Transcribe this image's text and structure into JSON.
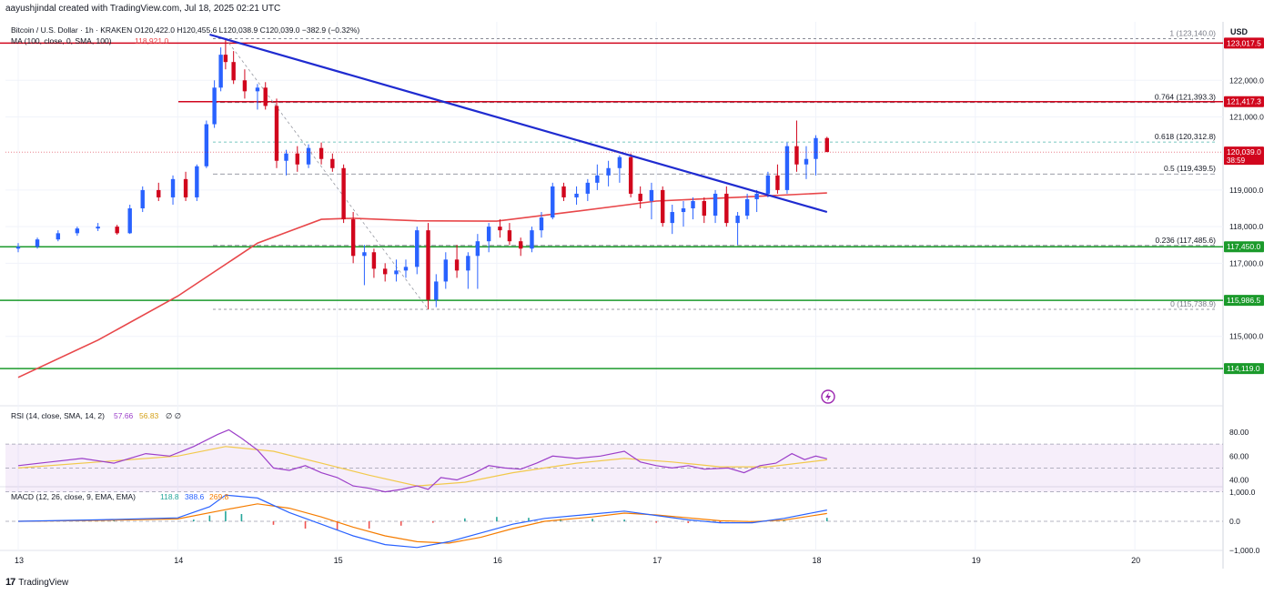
{
  "header": {
    "credit": "aayushjindal created with TradingView.com, Jul 18, 2025 02:21 UTC"
  },
  "legend": {
    "symbol": "Bitcoin / U.S. Dollar · 1h · KRAKEN",
    "ohlc": "O120,422.0  H120,455.6  L120,038.9  C120,039.0  −382.9 (−0.32%)",
    "ma_label": "MA (100, close, 0, SMA, 100)",
    "ma_value": "118,921.0",
    "rsi_label": "RSI (14, close, SMA, 14, 2)",
    "rsi_value": "57.66",
    "rsi_ma_value": "56.83",
    "rsi_extra": "∅  ∅",
    "macd_label": "MACD (12, 26, close, 9, EMA, EMA)",
    "macd_hist": "118.8",
    "macd_line": "388.6",
    "macd_signal": "269.8"
  },
  "currency": "USD",
  "footer": {
    "brand": "TradingView",
    "logo": "17"
  },
  "colors": {
    "up": "#2962ff",
    "down": "#d1061d",
    "ma": "#e8474a",
    "trend": "#1f2bd0",
    "resistance": "#d1061d",
    "support": "#1b9a2b",
    "rsi": "#9c3fc9",
    "rsi_ma": "#f2c94c",
    "macd": "#2962ff",
    "signal": "#f57c00",
    "fib": "#4db6ac"
  },
  "chart_data": {
    "type": "candlestick",
    "title": "Bitcoin / U.S. Dollar · 1h · KRAKEN",
    "x_ticks": [
      "13",
      "14",
      "15",
      "16",
      "17",
      "18",
      "19",
      "20"
    ],
    "y_ticks": [
      "122,000.0",
      "121,000.0",
      "119,000.0",
      "118,000.0",
      "117,000.0",
      "115,000.0"
    ],
    "price_badges": [
      {
        "label": "123,017.5",
        "value": 123017.5,
        "kind": "resistance"
      },
      {
        "label": "121,417.3",
        "value": 121417.3,
        "kind": "resistance"
      },
      {
        "label": "120,039.0",
        "value": 120039.0,
        "kind": "last",
        "countdown": "38:59"
      },
      {
        "label": "117,450.0",
        "value": 117450.0,
        "kind": "support"
      },
      {
        "label": "115,986.5",
        "value": 115986.5,
        "kind": "support"
      },
      {
        "label": "114,119.0",
        "value": 114119.0,
        "kind": "support"
      }
    ],
    "fibonacci": [
      {
        "label": "1 (123,140.0)",
        "level": 1,
        "value": 123140.0
      },
      {
        "label": "0.764 (121,393.3)",
        "level": 0.764,
        "value": 121393.3
      },
      {
        "label": "0.618 (120,312.8)",
        "level": 0.618,
        "value": 120312.8
      },
      {
        "label": "0.5 (119,439.5)",
        "level": 0.5,
        "value": 119439.5
      },
      {
        "label": "0.236 (117,485.6)",
        "level": 0.236,
        "value": 117485.6
      },
      {
        "label": "0 (115,738.9)",
        "level": 0,
        "value": 115738.9
      }
    ],
    "trendline": {
      "start": {
        "day": 14.2,
        "price": 123250
      },
      "end": {
        "day": 18.07,
        "price": 118400
      }
    },
    "ma_100": [
      {
        "day": 13.0,
        "price": 113880
      },
      {
        "day": 13.5,
        "price": 114900
      },
      {
        "day": 14.0,
        "price": 116100
      },
      {
        "day": 14.5,
        "price": 117550
      },
      {
        "day": 14.9,
        "price": 118200
      },
      {
        "day": 15.1,
        "price": 118230
      },
      {
        "day": 15.5,
        "price": 118160
      },
      {
        "day": 16.0,
        "price": 118150
      },
      {
        "day": 16.5,
        "price": 118420
      },
      {
        "day": 17.0,
        "price": 118700
      },
      {
        "day": 17.5,
        "price": 118800
      },
      {
        "day": 18.07,
        "price": 118921
      }
    ],
    "candles": [
      {
        "day": 13.0,
        "o": 117400,
        "h": 117550,
        "l": 117300,
        "c": 117450
      },
      {
        "day": 13.12,
        "o": 117450,
        "h": 117700,
        "l": 117400,
        "c": 117650
      },
      {
        "day": 13.25,
        "o": 117650,
        "h": 117900,
        "l": 117600,
        "c": 117820
      },
      {
        "day": 13.37,
        "o": 117820,
        "h": 118000,
        "l": 117750,
        "c": 117950
      },
      {
        "day": 13.5,
        "o": 117950,
        "h": 118100,
        "l": 117880,
        "c": 118000
      },
      {
        "day": 13.62,
        "o": 118000,
        "h": 118050,
        "l": 117780,
        "c": 117820
      },
      {
        "day": 13.7,
        "o": 117820,
        "h": 118600,
        "l": 117800,
        "c": 118500
      },
      {
        "day": 13.78,
        "o": 118500,
        "h": 119100,
        "l": 118400,
        "c": 119000
      },
      {
        "day": 13.88,
        "o": 119000,
        "h": 119200,
        "l": 118700,
        "c": 118800
      },
      {
        "day": 13.97,
        "o": 118800,
        "h": 119400,
        "l": 118600,
        "c": 119300
      },
      {
        "day": 14.05,
        "o": 119300,
        "h": 119500,
        "l": 118700,
        "c": 118800
      },
      {
        "day": 14.12,
        "o": 118800,
        "h": 119700,
        "l": 118700,
        "c": 119650
      },
      {
        "day": 14.18,
        "o": 119650,
        "h": 120900,
        "l": 119600,
        "c": 120800
      },
      {
        "day": 14.23,
        "o": 120800,
        "h": 122000,
        "l": 120700,
        "c": 121800
      },
      {
        "day": 14.27,
        "o": 121800,
        "h": 122900,
        "l": 121700,
        "c": 122700
      },
      {
        "day": 14.3,
        "o": 122700,
        "h": 123140,
        "l": 122300,
        "c": 122500
      },
      {
        "day": 14.35,
        "o": 122500,
        "h": 122800,
        "l": 121900,
        "c": 122000
      },
      {
        "day": 14.42,
        "o": 122000,
        "h": 122300,
        "l": 121500,
        "c": 121700
      },
      {
        "day": 14.5,
        "o": 121700,
        "h": 121900,
        "l": 121200,
        "c": 121800
      },
      {
        "day": 14.55,
        "o": 121800,
        "h": 121950,
        "l": 121200,
        "c": 121300
      },
      {
        "day": 14.62,
        "o": 121300,
        "h": 121500,
        "l": 119600,
        "c": 119800
      },
      {
        "day": 14.68,
        "o": 119800,
        "h": 120100,
        "l": 119400,
        "c": 120000
      },
      {
        "day": 14.75,
        "o": 120000,
        "h": 120200,
        "l": 119500,
        "c": 119700
      },
      {
        "day": 14.82,
        "o": 119700,
        "h": 120250,
        "l": 119600,
        "c": 120150
      },
      {
        "day": 14.9,
        "o": 120150,
        "h": 120300,
        "l": 119700,
        "c": 119850
      },
      {
        "day": 14.97,
        "o": 119850,
        "h": 120000,
        "l": 119500,
        "c": 119600
      },
      {
        "day": 15.04,
        "o": 119600,
        "h": 119700,
        "l": 118100,
        "c": 118200
      },
      {
        "day": 15.1,
        "o": 118200,
        "h": 118400,
        "l": 117000,
        "c": 117200
      },
      {
        "day": 15.17,
        "o": 117200,
        "h": 117500,
        "l": 116400,
        "c": 117300
      },
      {
        "day": 15.23,
        "o": 117300,
        "h": 117400,
        "l": 116600,
        "c": 116850
      },
      {
        "day": 15.3,
        "o": 116850,
        "h": 117000,
        "l": 116500,
        "c": 116700
      },
      {
        "day": 15.37,
        "o": 116700,
        "h": 117100,
        "l": 116500,
        "c": 116800
      },
      {
        "day": 15.43,
        "o": 116800,
        "h": 117100,
        "l": 116600,
        "c": 116900
      },
      {
        "day": 15.5,
        "o": 116900,
        "h": 118000,
        "l": 116700,
        "c": 117900
      },
      {
        "day": 15.57,
        "o": 117900,
        "h": 118100,
        "l": 115740,
        "c": 116000
      },
      {
        "day": 15.62,
        "o": 116000,
        "h": 116700,
        "l": 115800,
        "c": 116500
      },
      {
        "day": 15.68,
        "o": 116500,
        "h": 117300,
        "l": 116300,
        "c": 117100
      },
      {
        "day": 15.75,
        "o": 117100,
        "h": 117500,
        "l": 116600,
        "c": 116800
      },
      {
        "day": 15.82,
        "o": 116800,
        "h": 117300,
        "l": 116300,
        "c": 117200
      },
      {
        "day": 15.88,
        "o": 117200,
        "h": 117800,
        "l": 116300,
        "c": 117600
      },
      {
        "day": 15.95,
        "o": 117600,
        "h": 118100,
        "l": 117300,
        "c": 118000
      },
      {
        "day": 16.02,
        "o": 118000,
        "h": 118200,
        "l": 117700,
        "c": 117900
      },
      {
        "day": 16.08,
        "o": 117900,
        "h": 118100,
        "l": 117500,
        "c": 117600
      },
      {
        "day": 16.15,
        "o": 117600,
        "h": 117700,
        "l": 117200,
        "c": 117400
      },
      {
        "day": 16.22,
        "o": 117400,
        "h": 118000,
        "l": 117300,
        "c": 117900
      },
      {
        "day": 16.28,
        "o": 117900,
        "h": 118400,
        "l": 117700,
        "c": 118250
      },
      {
        "day": 16.35,
        "o": 118250,
        "h": 119200,
        "l": 118200,
        "c": 119100
      },
      {
        "day": 16.42,
        "o": 119100,
        "h": 119200,
        "l": 118700,
        "c": 118800
      },
      {
        "day": 16.5,
        "o": 118800,
        "h": 119100,
        "l": 118600,
        "c": 118900
      },
      {
        "day": 16.57,
        "o": 118900,
        "h": 119300,
        "l": 118700,
        "c": 119200
      },
      {
        "day": 16.63,
        "o": 119200,
        "h": 119700,
        "l": 119000,
        "c": 119400
      },
      {
        "day": 16.7,
        "o": 119400,
        "h": 119800,
        "l": 119100,
        "c": 119600
      },
      {
        "day": 16.77,
        "o": 119600,
        "h": 119950,
        "l": 119200,
        "c": 119900
      },
      {
        "day": 16.84,
        "o": 119900,
        "h": 120000,
        "l": 118800,
        "c": 118900
      },
      {
        "day": 16.9,
        "o": 118900,
        "h": 119100,
        "l": 118500,
        "c": 118700
      },
      {
        "day": 16.97,
        "o": 118700,
        "h": 119200,
        "l": 118200,
        "c": 119000
      },
      {
        "day": 17.04,
        "o": 119000,
        "h": 119100,
        "l": 118000,
        "c": 118100
      },
      {
        "day": 17.1,
        "o": 118100,
        "h": 118600,
        "l": 117800,
        "c": 118400
      },
      {
        "day": 17.17,
        "o": 118400,
        "h": 118700,
        "l": 118000,
        "c": 118500
      },
      {
        "day": 17.23,
        "o": 118500,
        "h": 118800,
        "l": 118200,
        "c": 118700
      },
      {
        "day": 17.3,
        "o": 118700,
        "h": 118800,
        "l": 118100,
        "c": 118300
      },
      {
        "day": 17.37,
        "o": 118300,
        "h": 119000,
        "l": 118100,
        "c": 118900
      },
      {
        "day": 17.44,
        "o": 118900,
        "h": 119100,
        "l": 118000,
        "c": 118100
      },
      {
        "day": 17.51,
        "o": 118100,
        "h": 118400,
        "l": 117500,
        "c": 118300
      },
      {
        "day": 17.57,
        "o": 118300,
        "h": 118900,
        "l": 118200,
        "c": 118750
      },
      {
        "day": 17.63,
        "o": 118750,
        "h": 119000,
        "l": 118400,
        "c": 118900
      },
      {
        "day": 17.7,
        "o": 118900,
        "h": 119500,
        "l": 118800,
        "c": 119400
      },
      {
        "day": 17.76,
        "o": 119400,
        "h": 119700,
        "l": 118900,
        "c": 119000
      },
      {
        "day": 17.82,
        "o": 119000,
        "h": 120300,
        "l": 118900,
        "c": 120200
      },
      {
        "day": 17.88,
        "o": 120200,
        "h": 120900,
        "l": 119500,
        "c": 119700
      },
      {
        "day": 17.94,
        "o": 119700,
        "h": 120200,
        "l": 119300,
        "c": 119850
      },
      {
        "day": 18.0,
        "o": 119850,
        "h": 120500,
        "l": 119400,
        "c": 120422
      },
      {
        "day": 18.07,
        "o": 120422,
        "h": 120456,
        "l": 120039,
        "c": 120039
      }
    ],
    "rsi": {
      "y_ticks": [
        "80.00",
        "60.00",
        "40.00"
      ],
      "band": [
        30,
        70
      ],
      "values": [
        [
          13.0,
          52
        ],
        [
          13.2,
          55
        ],
        [
          13.4,
          58
        ],
        [
          13.6,
          54
        ],
        [
          13.8,
          62
        ],
        [
          13.95,
          60
        ],
        [
          14.1,
          68
        ],
        [
          14.25,
          78
        ],
        [
          14.32,
          82
        ],
        [
          14.4,
          75
        ],
        [
          14.5,
          65
        ],
        [
          14.6,
          50
        ],
        [
          14.7,
          48
        ],
        [
          14.8,
          52
        ],
        [
          14.9,
          46
        ],
        [
          15.0,
          42
        ],
        [
          15.1,
          35
        ],
        [
          15.2,
          33
        ],
        [
          15.3,
          30
        ],
        [
          15.4,
          32
        ],
        [
          15.5,
          35
        ],
        [
          15.57,
          32
        ],
        [
          15.65,
          42
        ],
        [
          15.75,
          40
        ],
        [
          15.85,
          45
        ],
        [
          15.95,
          52
        ],
        [
          16.05,
          50
        ],
        [
          16.15,
          49
        ],
        [
          16.25,
          54
        ],
        [
          16.35,
          60
        ],
        [
          16.5,
          58
        ],
        [
          16.65,
          60
        ],
        [
          16.8,
          64
        ],
        [
          16.9,
          55
        ],
        [
          17.0,
          52
        ],
        [
          17.1,
          50
        ],
        [
          17.2,
          52
        ],
        [
          17.3,
          49
        ],
        [
          17.45,
          50
        ],
        [
          17.55,
          46
        ],
        [
          17.65,
          52
        ],
        [
          17.75,
          54
        ],
        [
          17.85,
          62
        ],
        [
          17.93,
          57
        ],
        [
          18.0,
          60
        ],
        [
          18.07,
          57.66
        ]
      ],
      "ma": [
        [
          13.0,
          50
        ],
        [
          13.5,
          55
        ],
        [
          14.0,
          60
        ],
        [
          14.3,
          68
        ],
        [
          14.6,
          64
        ],
        [
          14.9,
          54
        ],
        [
          15.2,
          44
        ],
        [
          15.5,
          35
        ],
        [
          15.8,
          38
        ],
        [
          16.1,
          46
        ],
        [
          16.5,
          54
        ],
        [
          16.8,
          58
        ],
        [
          17.1,
          55
        ],
        [
          17.4,
          51
        ],
        [
          17.7,
          51
        ],
        [
          18.07,
          56.83
        ]
      ]
    },
    "macd": {
      "y_ticks": [
        "1,000.0",
        "0.0",
        "−1,000.0"
      ],
      "macd": [
        [
          13.0,
          0
        ],
        [
          13.5,
          50
        ],
        [
          14.0,
          120
        ],
        [
          14.2,
          500
        ],
        [
          14.3,
          900
        ],
        [
          14.5,
          800
        ],
        [
          14.7,
          300
        ],
        [
          14.9,
          -100
        ],
        [
          15.1,
          -500
        ],
        [
          15.3,
          -800
        ],
        [
          15.5,
          -900
        ],
        [
          15.7,
          -700
        ],
        [
          15.9,
          -400
        ],
        [
          16.1,
          -100
        ],
        [
          16.3,
          100
        ],
        [
          16.6,
          250
        ],
        [
          16.8,
          350
        ],
        [
          17.0,
          200
        ],
        [
          17.2,
          50
        ],
        [
          17.4,
          -50
        ],
        [
          17.6,
          -50
        ],
        [
          17.8,
          100
        ],
        [
          18.07,
          388.6
        ]
      ],
      "signal": [
        [
          13.0,
          0
        ],
        [
          13.5,
          30
        ],
        [
          14.0,
          80
        ],
        [
          14.3,
          400
        ],
        [
          14.5,
          600
        ],
        [
          14.7,
          450
        ],
        [
          14.9,
          150
        ],
        [
          15.1,
          -200
        ],
        [
          15.3,
          -500
        ],
        [
          15.5,
          -700
        ],
        [
          15.7,
          -750
        ],
        [
          15.9,
          -550
        ],
        [
          16.1,
          -250
        ],
        [
          16.3,
          0
        ],
        [
          16.6,
          150
        ],
        [
          16.8,
          280
        ],
        [
          17.0,
          220
        ],
        [
          17.2,
          120
        ],
        [
          17.4,
          20
        ],
        [
          17.6,
          -10
        ],
        [
          17.8,
          40
        ],
        [
          18.07,
          269.8
        ]
      ],
      "histogram": [
        [
          13.2,
          20
        ],
        [
          13.6,
          30
        ],
        [
          14.1,
          60
        ],
        [
          14.2,
          200
        ],
        [
          14.3,
          350
        ],
        [
          14.4,
          250
        ],
        [
          14.6,
          -120
        ],
        [
          14.8,
          -250
        ],
        [
          15.0,
          -300
        ],
        [
          15.2,
          -250
        ],
        [
          15.4,
          -150
        ],
        [
          15.6,
          -50
        ],
        [
          15.8,
          100
        ],
        [
          16.0,
          150
        ],
        [
          16.2,
          120
        ],
        [
          16.4,
          80
        ],
        [
          16.6,
          90
        ],
        [
          16.8,
          60
        ],
        [
          17.0,
          -50
        ],
        [
          17.2,
          -60
        ],
        [
          17.4,
          -40
        ],
        [
          17.6,
          -20
        ],
        [
          17.8,
          40
        ],
        [
          18.07,
          118.8
        ]
      ]
    }
  }
}
